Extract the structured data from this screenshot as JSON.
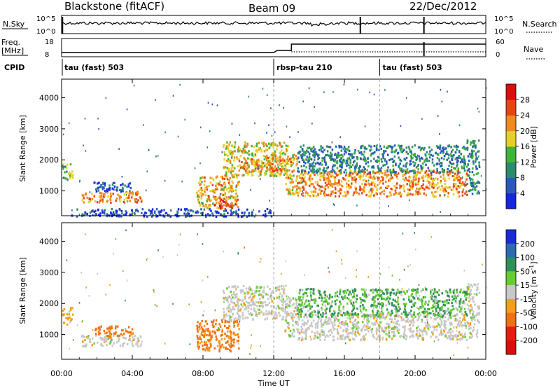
{
  "header": {
    "station": "Blackstone (fitACF)",
    "beam": "Beam 09",
    "date": "22/Dec/2012"
  },
  "strip": {
    "nsky_label": "N.Sky",
    "nsky_ticks": [
      "10^5",
      "10^0"
    ],
    "nsearch_label": "N.Search",
    "freq_label": "Freq.",
    "freq_unit": "[MHz]",
    "freq_ticks": [
      "18",
      "8"
    ],
    "nave_label": "Nave",
    "nave_ticks": [
      "60",
      "0"
    ],
    "cpid_label": "CPID"
  },
  "cpid_segments": [
    {
      "start_h": 0,
      "end_h": 12,
      "label": "tau (fast) 503"
    },
    {
      "start_h": 12,
      "end_h": 18,
      "label": "rbsp-tau 210"
    },
    {
      "start_h": 18,
      "end_h": 24,
      "label": "tau (fast) 503"
    }
  ],
  "chart_data": [
    {
      "type": "heatmap",
      "name": "power",
      "ylabel": "Slant Range [km]",
      "ylim": [
        200,
        4600
      ],
      "yticks": [
        1000,
        2000,
        3000,
        4000
      ],
      "xlim": [
        0,
        24
      ],
      "colorbar": {
        "label": "Power [dB]",
        "ticks": [
          "4",
          "8",
          "12",
          "16",
          "20",
          "24",
          "28"
        ],
        "range": [
          0,
          30
        ],
        "colors": [
          "#1525e0",
          "#2a59b8",
          "#2e8a6c",
          "#3fb43d",
          "#e6d028",
          "#f08a1e",
          "#e84318",
          "#dd0c0c"
        ]
      },
      "regions": [
        {
          "t0": 0.0,
          "t1": 0.6,
          "r0": 1350,
          "r1": 1900,
          "v": 15
        },
        {
          "t0": 1.1,
          "t1": 4.5,
          "r0": 650,
          "r1": 1000,
          "v": 22
        },
        {
          "t0": 1.8,
          "t1": 4.0,
          "r0": 980,
          "r1": 1300,
          "v": 6
        },
        {
          "t0": 7.6,
          "t1": 10.0,
          "r0": 480,
          "r1": 1500,
          "v": 20
        },
        {
          "t0": 8.6,
          "t1": 9.8,
          "r0": 450,
          "r1": 800,
          "v": 26
        },
        {
          "t0": 9.1,
          "t1": 12.8,
          "r0": 1500,
          "r1": 2600,
          "v": 18
        },
        {
          "t0": 10.0,
          "t1": 12.7,
          "r0": 1650,
          "r1": 2100,
          "v": 23
        },
        {
          "t0": 12.6,
          "t1": 13.3,
          "r0": 900,
          "r1": 2200,
          "v": 20
        },
        {
          "t0": 13.3,
          "t1": 22.9,
          "r0": 850,
          "r1": 1700,
          "v": 22
        },
        {
          "t0": 13.3,
          "t1": 22.9,
          "r0": 1600,
          "r1": 2500,
          "v": 9
        },
        {
          "t0": 22.9,
          "t1": 23.6,
          "r0": 900,
          "r1": 2700,
          "v": 10
        },
        {
          "t0": 0.5,
          "t1": 12.0,
          "r0": 200,
          "r1": 450,
          "v": 5
        }
      ]
    },
    {
      "type": "heatmap",
      "name": "velocity",
      "ylabel": "Slant Range [km]",
      "xlabel": "Time UT",
      "ylim": [
        200,
        4600
      ],
      "yticks": [
        1000,
        2000,
        3000,
        4000
      ],
      "xlim": [
        0,
        24
      ],
      "xticks": [
        "00:00",
        "04:00",
        "08:00",
        "12:00",
        "16:00",
        "20:00",
        "00:00"
      ],
      "colorbar": {
        "label": "Velocity [m s^-1]",
        "ticks": [
          "200",
          "100",
          "50",
          "15",
          "-15",
          "-50",
          "-100",
          "-200"
        ],
        "colors": [
          "#1a2bd8",
          "#2e6ab0",
          "#2e8f58",
          "#66cc33",
          "#c8c8c8",
          "#f2a018",
          "#f07014",
          "#e81c10",
          "#dd0c0c"
        ]
      },
      "regions": [
        {
          "t0": 0.0,
          "t1": 0.6,
          "r0": 1350,
          "r1": 1900,
          "v": -30
        },
        {
          "t0": 1.1,
          "t1": 4.5,
          "r0": 650,
          "r1": 1000,
          "v": 0
        },
        {
          "t0": 1.8,
          "t1": 4.0,
          "r0": 980,
          "r1": 1300,
          "v": -60
        },
        {
          "t0": 7.6,
          "t1": 10.0,
          "r0": 480,
          "r1": 1500,
          "v": -60
        },
        {
          "t0": 9.1,
          "t1": 12.8,
          "r0": 1500,
          "r1": 2600,
          "v": 0
        },
        {
          "t0": 12.6,
          "t1": 13.3,
          "r0": 900,
          "r1": 2200,
          "v": 0
        },
        {
          "t0": 13.3,
          "t1": 22.9,
          "r0": 850,
          "r1": 1700,
          "v": 0
        },
        {
          "t0": 13.3,
          "t1": 22.9,
          "r0": 1600,
          "r1": 2500,
          "v": 30
        },
        {
          "t0": 22.9,
          "t1": 23.6,
          "r0": 900,
          "r1": 2700,
          "v": 0
        }
      ]
    }
  ]
}
